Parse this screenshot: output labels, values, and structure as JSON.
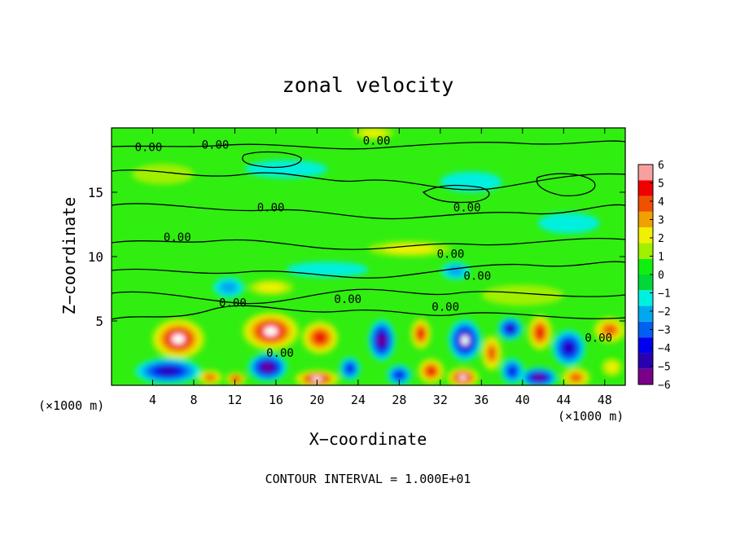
{
  "chart_data": {
    "type": "heatmap",
    "title": "zonal velocity",
    "xlabel": "X−coordinate",
    "ylabel": "Z−coordinate",
    "x_unit_label": "(×1000 m)",
    "x_unit_label_right": "(×1000 m)",
    "footer": "CONTOUR INTERVAL = 1.000E+01",
    "xlim": [
      0,
      50
    ],
    "ylim": [
      0,
      20
    ],
    "x_ticks": [
      4,
      8,
      12,
      16,
      20,
      24,
      28,
      32,
      36,
      40,
      44,
      48
    ],
    "x_tick_labels": [
      "4",
      "8",
      "12",
      "16",
      "20",
      "24",
      "28",
      "32",
      "36",
      "40",
      "44",
      "48"
    ],
    "y_ticks": [
      5,
      10,
      15
    ],
    "y_tick_labels": [
      "5",
      "10",
      "15"
    ],
    "colorbar": {
      "min": -6,
      "max": 6,
      "ticks": [
        6,
        5,
        4,
        3,
        2,
        1,
        0,
        -1,
        -2,
        -3,
        -4,
        -5,
        -6
      ],
      "tick_labels": [
        "6",
        "5",
        "4",
        "3",
        "2",
        "1",
        "0",
        "−1",
        "−2",
        "−3",
        "−4",
        "−5",
        "−6"
      ],
      "colors": [
        "#7a008a",
        "#2a00b0",
        "#0000f0",
        "#0060f0",
        "#00a8f0",
        "#00f0e0",
        "#00d838",
        "#10f010",
        "#a0f000",
        "#f0f000",
        "#f0a000",
        "#f05000",
        "#f00000",
        "#f8a0a0"
      ]
    },
    "background_color": "#30ee10",
    "contour_level_label": "0.00",
    "contour_labels": [
      {
        "text": "0.00",
        "x": 3.6,
        "z": 18.2
      },
      {
        "text": "0.00",
        "x": 10.1,
        "z": 18.4
      },
      {
        "text": "0.00",
        "x": 25.8,
        "z": 18.7
      },
      {
        "text": "0.00",
        "x": 15.5,
        "z": 13.5
      },
      {
        "text": "0.00",
        "x": 34.6,
        "z": 13.5
      },
      {
        "text": "0.00",
        "x": 6.4,
        "z": 11.2
      },
      {
        "text": "0.00",
        "x": 33.0,
        "z": 9.9
      },
      {
        "text": "0.00",
        "x": 35.6,
        "z": 8.2
      },
      {
        "text": "0.00",
        "x": 23.0,
        "z": 6.4
      },
      {
        "text": "0.00",
        "x": 11.8,
        "z": 6.1
      },
      {
        "text": "0.00",
        "x": 32.5,
        "z": 5.8
      },
      {
        "text": "0.00",
        "x": 16.4,
        "z": 2.2
      },
      {
        "text": "0.00",
        "x": 47.4,
        "z": 3.4
      }
    ],
    "features": [
      {
        "x": 6.5,
        "z": 3.6,
        "rx": 2.6,
        "rz": 1.6,
        "value": 6.0
      },
      {
        "x": 15.5,
        "z": 4.2,
        "rx": 2.8,
        "rz": 1.5,
        "value": 6.0
      },
      {
        "x": 20.3,
        "z": 3.7,
        "rx": 1.8,
        "rz": 1.3,
        "value": 4.5
      },
      {
        "x": 5.5,
        "z": 1.1,
        "rx": 3.2,
        "rz": 1.0,
        "value": -5.0
      },
      {
        "x": 9.6,
        "z": 0.6,
        "rx": 1.2,
        "rz": 0.6,
        "value": 4.0
      },
      {
        "x": 12.1,
        "z": 0.5,
        "rx": 1.0,
        "rz": 0.5,
        "value": 5.0
      },
      {
        "x": 15.2,
        "z": 1.4,
        "rx": 1.9,
        "rz": 1.1,
        "value": -5.5
      },
      {
        "x": 20.0,
        "z": 0.5,
        "rx": 2.2,
        "rz": 0.7,
        "value": 6.0
      },
      {
        "x": 23.2,
        "z": 1.3,
        "rx": 1.0,
        "rz": 0.9,
        "value": -3.5
      },
      {
        "x": 26.3,
        "z": 3.5,
        "rx": 1.3,
        "rz": 1.6,
        "value": -5.5
      },
      {
        "x": 28.0,
        "z": 0.8,
        "rx": 1.2,
        "rz": 0.8,
        "value": -4.0
      },
      {
        "x": 30.1,
        "z": 4.0,
        "rx": 1.0,
        "rz": 1.2,
        "value": 4.5
      },
      {
        "x": 31.1,
        "z": 1.1,
        "rx": 1.3,
        "rz": 1.0,
        "value": 4.5
      },
      {
        "x": 34.4,
        "z": 3.5,
        "rx": 1.6,
        "rz": 1.6,
        "value": -6.0
      },
      {
        "x": 34.2,
        "z": 0.6,
        "rx": 1.6,
        "rz": 0.8,
        "value": 6.0
      },
      {
        "x": 37.0,
        "z": 2.5,
        "rx": 1.0,
        "rz": 1.4,
        "value": 4.0
      },
      {
        "x": 38.8,
        "z": 4.4,
        "rx": 1.2,
        "rz": 0.9,
        "value": -4.5
      },
      {
        "x": 39.0,
        "z": 1.1,
        "rx": 1.1,
        "rz": 1.0,
        "value": -4.0
      },
      {
        "x": 41.7,
        "z": 4.1,
        "rx": 1.2,
        "rz": 1.4,
        "value": 5.0
      },
      {
        "x": 41.6,
        "z": 0.6,
        "rx": 1.8,
        "rz": 0.8,
        "value": -5.5
      },
      {
        "x": 44.5,
        "z": 2.9,
        "rx": 1.6,
        "rz": 1.4,
        "value": -5.0
      },
      {
        "x": 45.2,
        "z": 0.6,
        "rx": 1.4,
        "rz": 0.8,
        "value": 4.0
      },
      {
        "x": 48.5,
        "z": 4.3,
        "rx": 1.6,
        "rz": 1.0,
        "value": 4.0
      },
      {
        "x": 48.7,
        "z": 1.4,
        "rx": 1.3,
        "rz": 0.9,
        "value": 2.5
      },
      {
        "x": 11.4,
        "z": 7.6,
        "rx": 1.5,
        "rz": 0.8,
        "value": -2.2
      },
      {
        "x": 33.5,
        "z": 8.9,
        "rx": 1.4,
        "rz": 0.7,
        "value": -1.8
      },
      {
        "x": 15.5,
        "z": 7.6,
        "rx": 2.2,
        "rz": 0.6,
        "value": 1.8
      },
      {
        "x": 29.0,
        "z": 10.6,
        "rx": 4.0,
        "rz": 0.6,
        "value": 1.8
      },
      {
        "x": 5.0,
        "z": 16.4,
        "rx": 3.0,
        "rz": 0.8,
        "value": 1.4
      },
      {
        "x": 35.0,
        "z": 15.8,
        "rx": 3.0,
        "rz": 0.8,
        "value": -1.3
      },
      {
        "x": 17.0,
        "z": 16.8,
        "rx": 4.0,
        "rz": 0.7,
        "value": -1.1
      },
      {
        "x": 25.5,
        "z": 19.6,
        "rx": 2.0,
        "rz": 0.5,
        "value": 1.8
      },
      {
        "x": 44.5,
        "z": 12.6,
        "rx": 3.0,
        "rz": 0.8,
        "value": -1.0
      },
      {
        "x": 21.0,
        "z": 9.0,
        "rx": 4.0,
        "rz": 0.6,
        "value": -0.9
      },
      {
        "x": 40.0,
        "z": 7.0,
        "rx": 4.0,
        "rz": 0.8,
        "value": 1.2
      }
    ]
  }
}
